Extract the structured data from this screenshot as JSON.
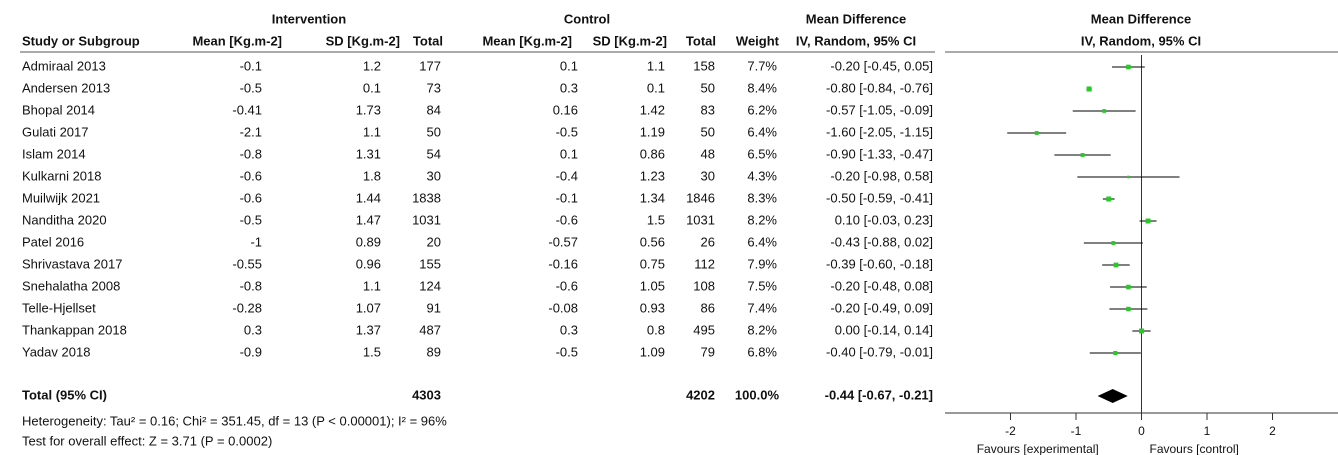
{
  "chart_data": {
    "type": "forest",
    "headers": {
      "intervention": "Intervention",
      "control": "Control",
      "md": "Mean Difference",
      "md_sub": "IV, Random, 95% CI",
      "study": "Study or Subgroup",
      "mean_i": "Mean [Kg.m-2]",
      "sd_i": "SD [Kg.m-2]",
      "total_i": "Total",
      "mean_c": "Mean [Kg.m-2]",
      "sd_c": "SD [Kg.m-2]",
      "total_c": "Total",
      "weight": "Weight"
    },
    "plot_title": "Mean Difference",
    "plot_subtitle": "IV, Random, 95% CI",
    "studies": [
      {
        "name": "Admiraal 2013",
        "mean_i": -0.1,
        "sd_i": 1.2,
        "n_i": 177,
        "mean_c": 0.1,
        "sd_c": 1.1,
        "n_c": 158,
        "weight": 7.7,
        "weight_label": "7.7%",
        "md": -0.2,
        "lo": -0.45,
        "hi": 0.05,
        "ci_label": "-0.20 [-0.45, 0.05]"
      },
      {
        "name": "Andersen 2013",
        "mean_i": -0.5,
        "sd_i": 0.1,
        "n_i": 73,
        "mean_c": 0.3,
        "sd_c": 0.1,
        "n_c": 50,
        "weight": 8.4,
        "weight_label": "8.4%",
        "md": -0.8,
        "lo": -0.84,
        "hi": -0.76,
        "ci_label": "-0.80 [-0.84, -0.76]"
      },
      {
        "name": "Bhopal 2014",
        "mean_i": -0.41,
        "sd_i": 1.73,
        "n_i": 84,
        "mean_c": 0.16,
        "sd_c": 1.42,
        "n_c": 83,
        "weight": 6.2,
        "weight_label": "6.2%",
        "md": -0.57,
        "lo": -1.05,
        "hi": -0.09,
        "ci_label": "-0.57 [-1.05, -0.09]"
      },
      {
        "name": "Gulati 2017",
        "mean_i": -2.1,
        "sd_i": 1.1,
        "n_i": 50,
        "mean_c": -0.5,
        "sd_c": 1.19,
        "n_c": 50,
        "weight": 6.4,
        "weight_label": "6.4%",
        "md": -1.6,
        "lo": -2.05,
        "hi": -1.15,
        "ci_label": "-1.60 [-2.05, -1.15]"
      },
      {
        "name": "Islam 2014",
        "mean_i": -0.8,
        "sd_i": 1.31,
        "n_i": 54,
        "mean_c": 0.1,
        "sd_c": 0.86,
        "n_c": 48,
        "weight": 6.5,
        "weight_label": "6.5%",
        "md": -0.9,
        "lo": -1.33,
        "hi": -0.47,
        "ci_label": "-0.90 [-1.33, -0.47]"
      },
      {
        "name": "Kulkarni 2018",
        "mean_i": -0.6,
        "sd_i": 1.8,
        "n_i": 30,
        "mean_c": -0.4,
        "sd_c": 1.23,
        "n_c": 30,
        "weight": 4.3,
        "weight_label": "4.3%",
        "md": -0.2,
        "lo": -0.98,
        "hi": 0.58,
        "ci_label": "-0.20 [-0.98, 0.58]"
      },
      {
        "name": "Muilwijk 2021",
        "mean_i": -0.6,
        "sd_i": 1.44,
        "n_i": 1838,
        "mean_c": -0.1,
        "sd_c": 1.34,
        "n_c": 1846,
        "weight": 8.3,
        "weight_label": "8.3%",
        "md": -0.5,
        "lo": -0.59,
        "hi": -0.41,
        "ci_label": "-0.50 [-0.59, -0.41]"
      },
      {
        "name": "Nanditha 2020",
        "mean_i": -0.5,
        "sd_i": 1.47,
        "n_i": 1031,
        "mean_c": -0.6,
        "sd_c": 1.5,
        "n_c": 1031,
        "weight": 8.2,
        "weight_label": "8.2%",
        "md": 0.1,
        "lo": -0.03,
        "hi": 0.23,
        "ci_label": "0.10 [-0.03, 0.23]"
      },
      {
        "name": "Patel 2016",
        "mean_i": -1,
        "sd_i": 0.89,
        "n_i": 20,
        "mean_c": -0.57,
        "sd_c": 0.56,
        "n_c": 26,
        "weight": 6.4,
        "weight_label": "6.4%",
        "md": -0.43,
        "lo": -0.88,
        "hi": 0.02,
        "ci_label": "-0.43 [-0.88, 0.02]"
      },
      {
        "name": "Shrivastava 2017",
        "mean_i": -0.55,
        "sd_i": 0.96,
        "n_i": 155,
        "mean_c": -0.16,
        "sd_c": 0.75,
        "n_c": 112,
        "weight": 7.9,
        "weight_label": "7.9%",
        "md": -0.39,
        "lo": -0.6,
        "hi": -0.18,
        "ci_label": "-0.39 [-0.60, -0.18]"
      },
      {
        "name": "Snehalatha 2008",
        "mean_i": -0.8,
        "sd_i": 1.1,
        "n_i": 124,
        "mean_c": -0.6,
        "sd_c": 1.05,
        "n_c": 108,
        "weight": 7.5,
        "weight_label": "7.5%",
        "md": -0.2,
        "lo": -0.48,
        "hi": 0.08,
        "ci_label": "-0.20 [-0.48, 0.08]"
      },
      {
        "name": "Telle-Hjellset",
        "mean_i": -0.28,
        "sd_i": 1.07,
        "n_i": 91,
        "mean_c": -0.08,
        "sd_c": 0.93,
        "n_c": 86,
        "weight": 7.4,
        "weight_label": "7.4%",
        "md": -0.2,
        "lo": -0.49,
        "hi": 0.09,
        "ci_label": "-0.20 [-0.49, 0.09]"
      },
      {
        "name": "Thankappan 2018",
        "mean_i": 0.3,
        "sd_i": 1.37,
        "n_i": 487,
        "mean_c": 0.3,
        "sd_c": 0.8,
        "n_c": 495,
        "weight": 8.2,
        "weight_label": "8.2%",
        "md": 0,
        "lo": -0.14,
        "hi": 0.14,
        "ci_label": "0.00 [-0.14, 0.14]"
      },
      {
        "name": "Yadav 2018",
        "mean_i": -0.9,
        "sd_i": 1.5,
        "n_i": 89,
        "mean_c": -0.5,
        "sd_c": 1.09,
        "n_c": 79,
        "weight": 6.8,
        "weight_label": "6.8%",
        "md": -0.4,
        "lo": -0.79,
        "hi": -0.01,
        "ci_label": "-0.40 [-0.79, -0.01]"
      }
    ],
    "total": {
      "name": "Total (95% CI)",
      "n_i": 4303,
      "n_c": 4202,
      "weight": 100,
      "weight_label": "100.0%",
      "md": -0.44,
      "lo": -0.67,
      "hi": -0.21,
      "ci_label": "-0.44 [-0.67, -0.21]"
    },
    "heterogeneity": "Heterogeneity: Tau² = 0.16; Chi² = 351.45, df = 13 (P < 0.00001); I² = 96%",
    "overall_effect": "Test for overall effect: Z = 3.71 (P = 0.0002)",
    "xlim": [
      -3,
      3
    ],
    "xticks": [
      -2,
      -1,
      0,
      1,
      2
    ],
    "favours_left": "Favours [experimental]",
    "favours_right": "Favours [control]",
    "color": "#22cc22",
    "summary_color": "#000000"
  }
}
